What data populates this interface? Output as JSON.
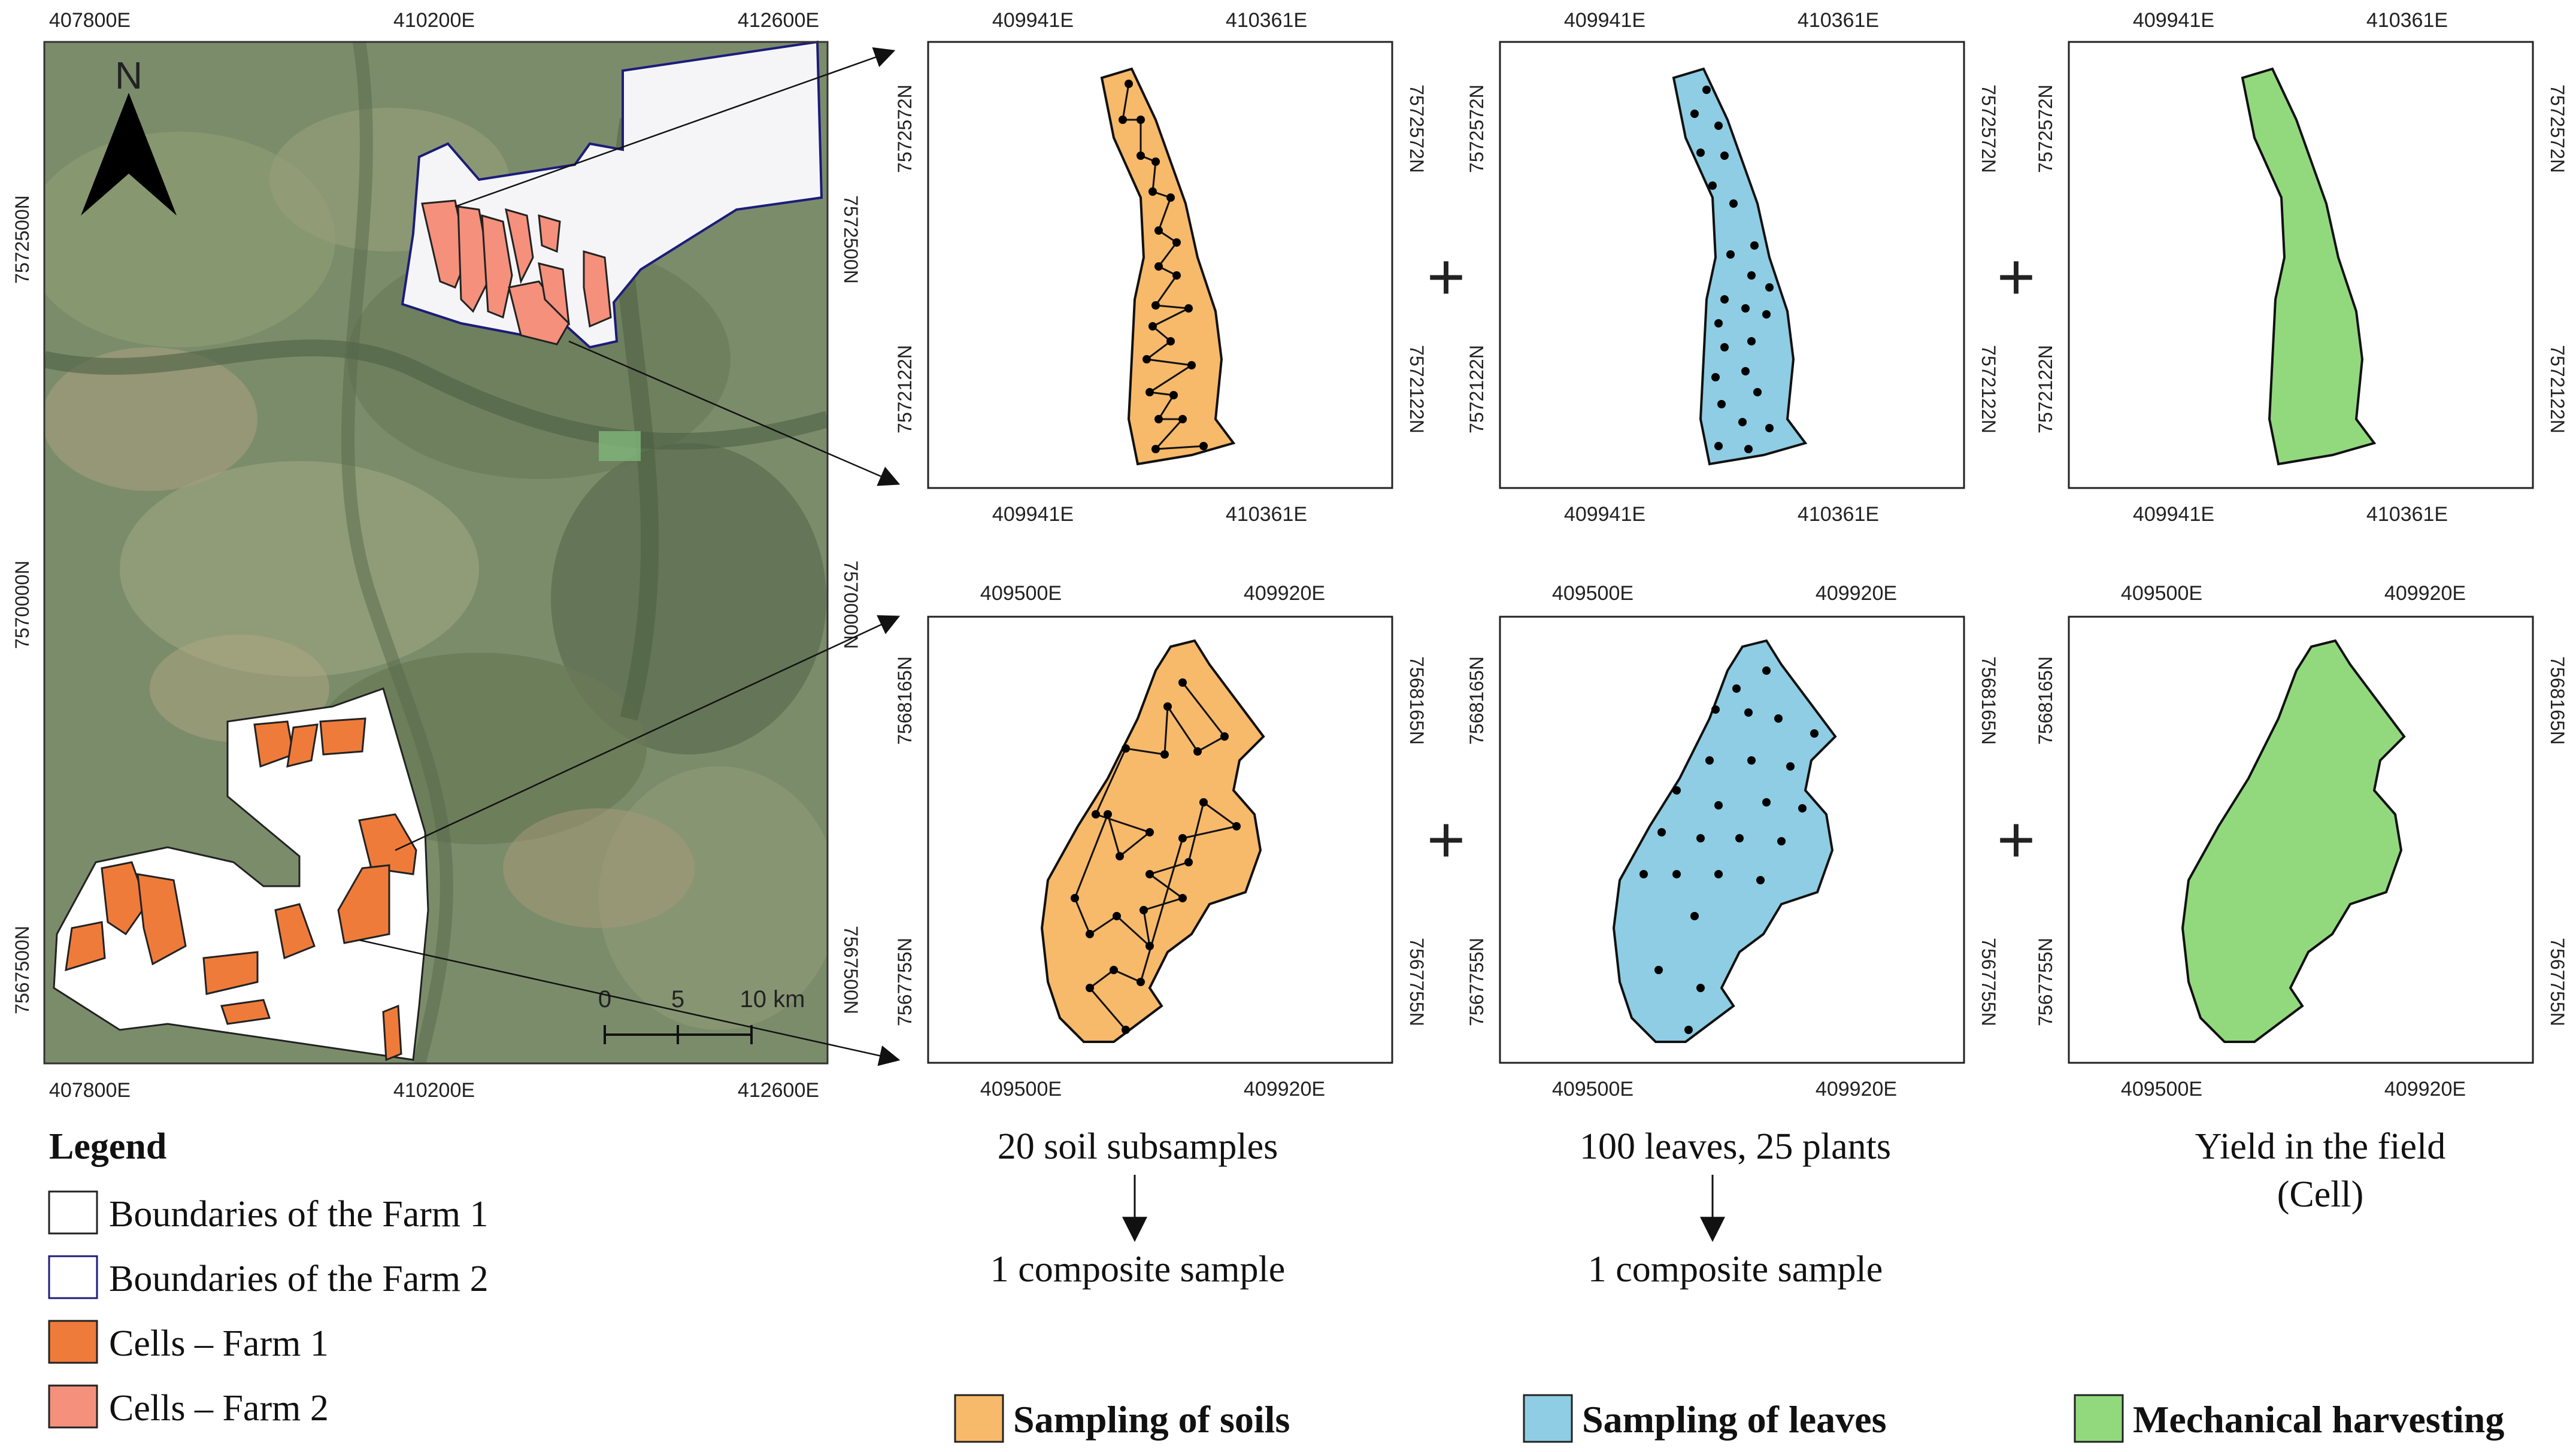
{
  "main_map": {
    "top_x_ticks": [
      "407800E",
      "410200E",
      "412600E"
    ],
    "bottom_x_ticks": [
      "407800E",
      "410200E",
      "412600E"
    ],
    "left_y_ticks": [
      "7572500N",
      "7570000N",
      "7567500N"
    ],
    "right_y_ticks": [
      "7572500N",
      "7570000N",
      "7567500N"
    ],
    "north_label": "N",
    "scale_labels": [
      "0",
      "5",
      "10 km"
    ]
  },
  "legend": {
    "title": "Legend",
    "items": [
      {
        "label": "Boundaries of the Farm 1",
        "fill": "#ffffff",
        "stroke": "#222222"
      },
      {
        "label": "Boundaries of the Farm 2",
        "fill": "#ffffff",
        "stroke": "#1c1c7a"
      },
      {
        "label": "Cells – Farm 1",
        "fill": "#ef7b3a",
        "stroke": "#222222"
      },
      {
        "label": "Cells – Farm 2",
        "fill": "#f4907c",
        "stroke": "#222222"
      }
    ]
  },
  "top_panels": {
    "x_ticks": [
      "409941E",
      "410361E"
    ],
    "y_ticks": [
      "7572572N",
      "7572122N"
    ]
  },
  "bottom_panels": {
    "x_ticks": [
      "409500E",
      "409920E"
    ],
    "y_ticks": [
      "7568165N",
      "7567755N"
    ]
  },
  "plus_sign": "+",
  "captions": {
    "soil": "20 soil subsamples",
    "soil_result": "1 composite sample",
    "leaves": "100 leaves, 25 plants",
    "leaves_result": "1 composite sample",
    "yield_line1": "Yield in the field",
    "yield_line2": "(Cell)"
  },
  "bottom_legend": [
    {
      "label": "Sampling of soils",
      "color": "#f7b96a"
    },
    {
      "label": "Sampling of leaves",
      "color": "#8ecde3"
    },
    {
      "label": "Mechanical harvesting",
      "color": "#92d97e"
    }
  ],
  "colors": {
    "soil": "#f7b96a",
    "leaves": "#8ecde3",
    "harvest": "#92d97e",
    "farm1_cells": "#ef7b3a",
    "farm2_cells": "#f4907c",
    "satellite_base": "#7a8a6a"
  }
}
